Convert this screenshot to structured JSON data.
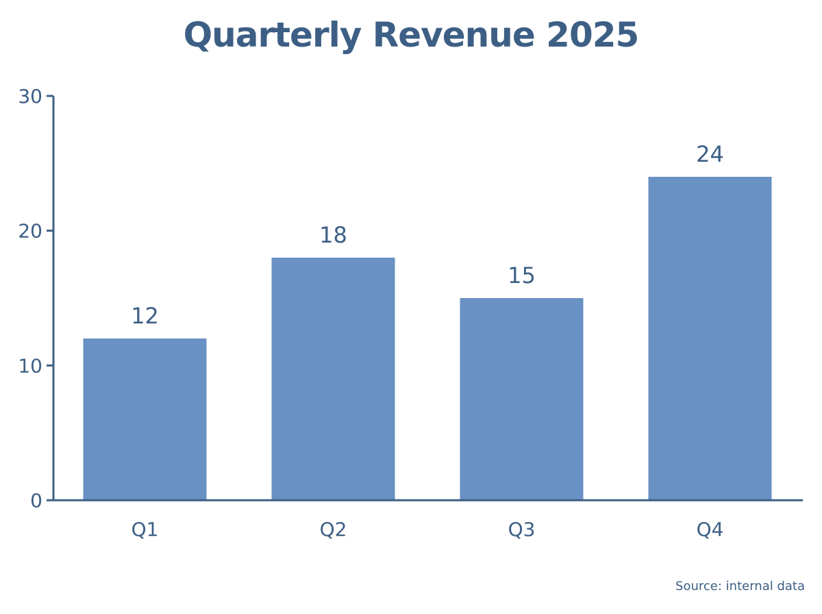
{
  "chart_data": {
    "type": "bar",
    "title": "Quarterly Revenue 2025",
    "categories": [
      "Q1",
      "Q2",
      "Q3",
      "Q4"
    ],
    "values": [
      12,
      18,
      15,
      24
    ],
    "data_labels": [
      "12",
      "18",
      "15",
      "24"
    ],
    "xlabel": "",
    "ylabel": "",
    "ylim": [
      0,
      30
    ],
    "yticks": [
      0,
      10,
      20,
      30
    ],
    "grid": false,
    "legend": false,
    "bar_color": "#6991c3",
    "axis_color": "#3d5f85",
    "text_color": "#3d5f85"
  },
  "source_note": "Source: internal data"
}
